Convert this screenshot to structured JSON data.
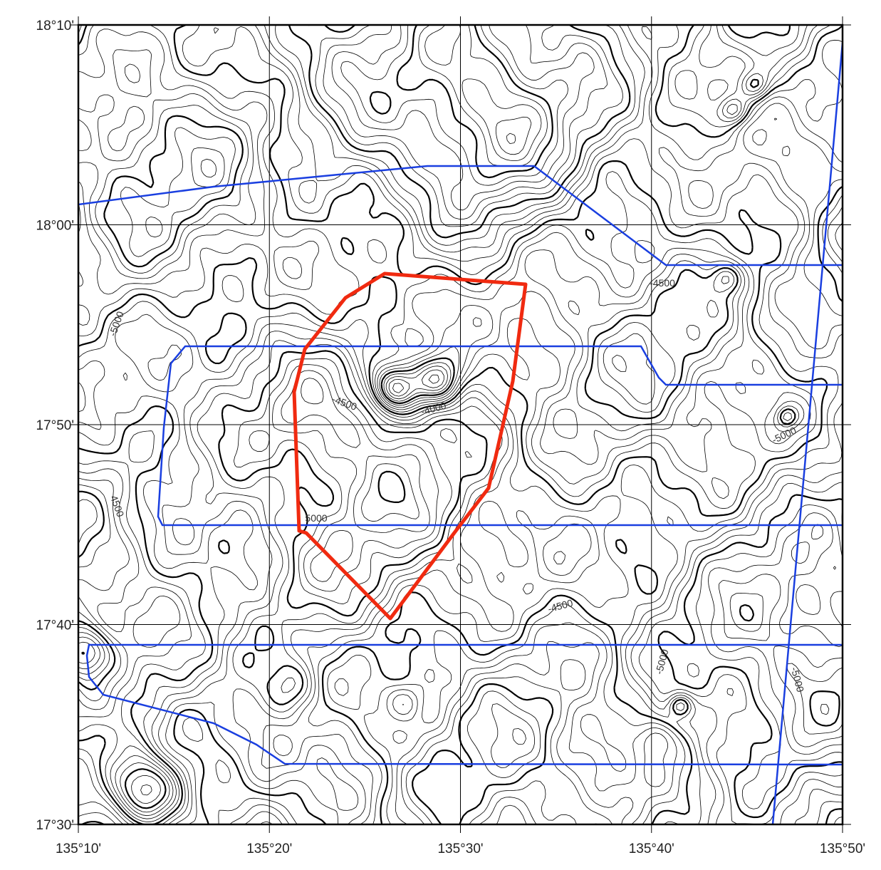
{
  "map": {
    "xlim": [
      135.16667,
      135.83333
    ],
    "ylim": [
      17.5,
      18.16667
    ],
    "xticks": [
      {
        "value": 135.16667,
        "label": "135°10'"
      },
      {
        "value": 135.33333,
        "label": "135°20'"
      },
      {
        "value": 135.5,
        "label": "135°30'"
      },
      {
        "value": 135.66667,
        "label": "135°40'"
      },
      {
        "value": 135.83333,
        "label": "135°50'"
      }
    ],
    "yticks": [
      {
        "value": 17.5,
        "label": "17°30'"
      },
      {
        "value": 17.66667,
        "label": "17°40'"
      },
      {
        "value": 17.83333,
        "label": "17°50'"
      },
      {
        "value": 18.0,
        "label": "18°00'"
      },
      {
        "value": 18.16667,
        "label": "18°10'"
      }
    ],
    "contour_labels": [
      "-5000",
      "-4500",
      "-4500",
      "-4000",
      "5000",
      "4500",
      "-5000",
      "-4500",
      "-5000",
      "-5000"
    ]
  }
}
